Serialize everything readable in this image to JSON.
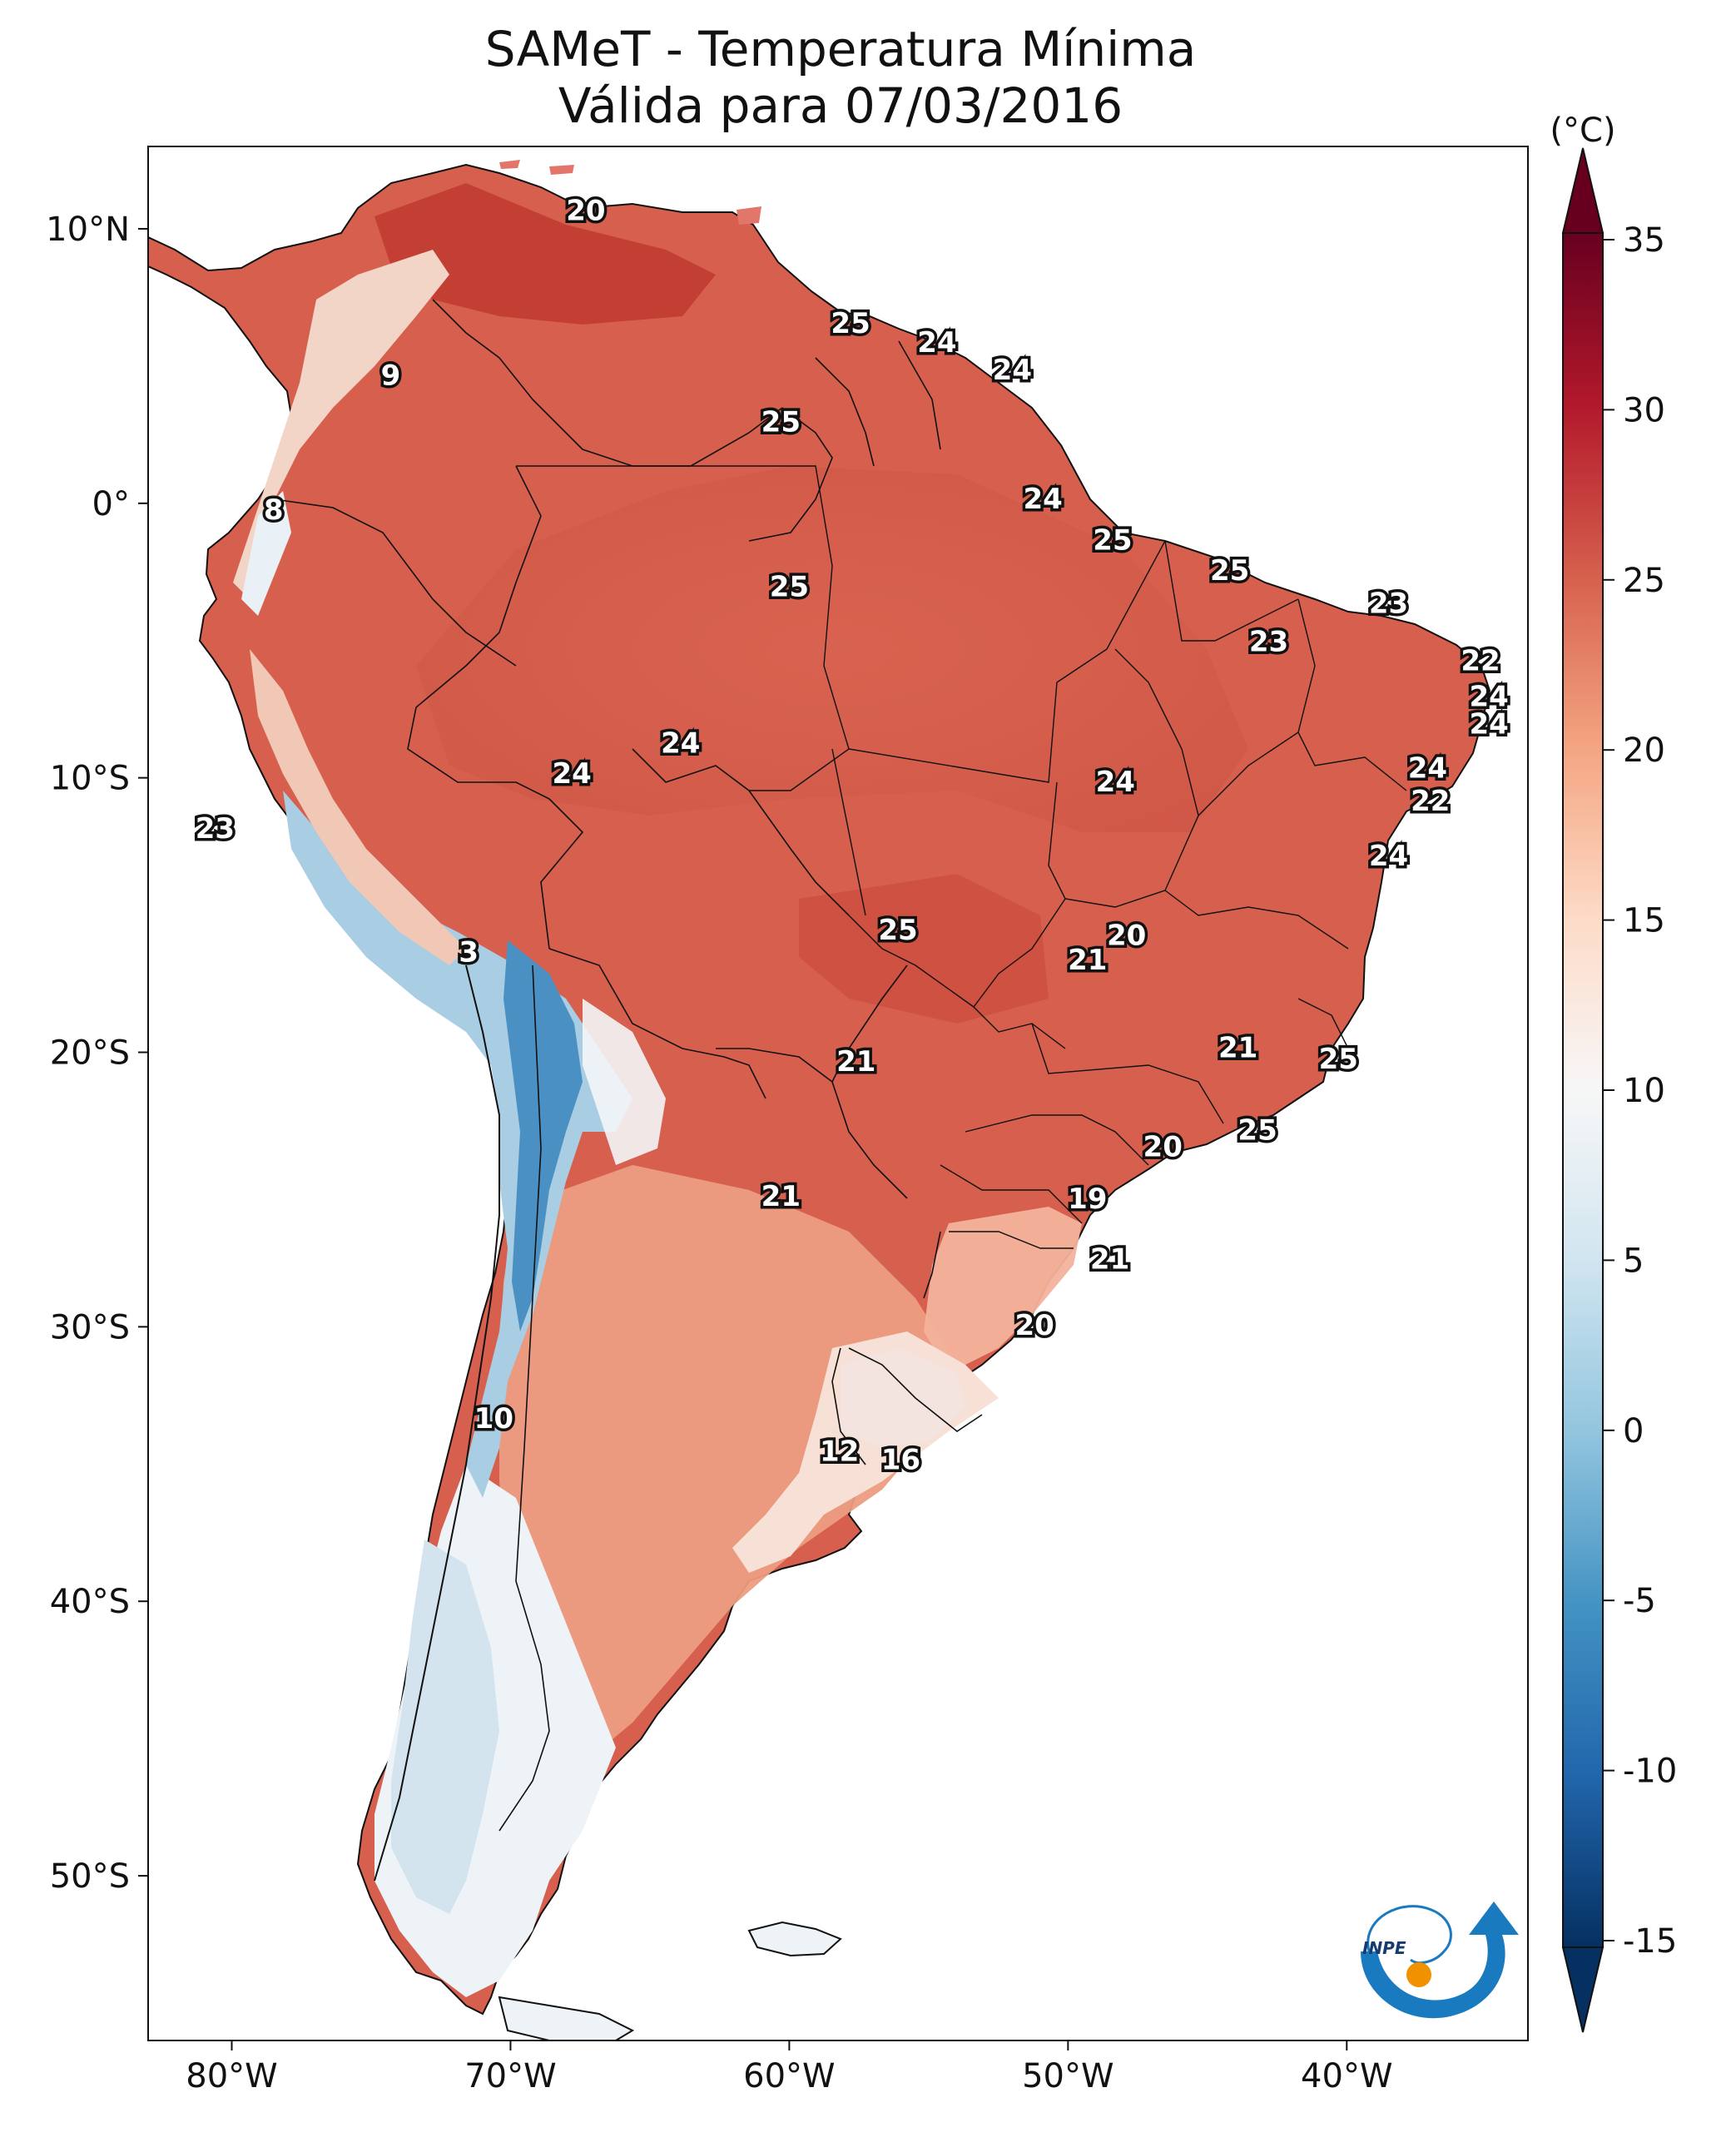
{
  "title_line1": "SAMeT - Temperatura Mínima",
  "title_line2": "Válida para 07/03/2016",
  "unit": "(°C)",
  "lon_labels": [
    {
      "text": "80°W",
      "lon": -80
    },
    {
      "text": "70°W",
      "lon": -70
    },
    {
      "text": "60°W",
      "lon": -60
    },
    {
      "text": "50°W",
      "lon": -50
    },
    {
      "text": "40°W",
      "lon": -40
    }
  ],
  "lat_labels": [
    {
      "text": "10°N",
      "lat": 10
    },
    {
      "text": "0°",
      "lat": 0
    },
    {
      "text": "10°S",
      "lat": -10
    },
    {
      "text": "20°S",
      "lat": -20
    },
    {
      "text": "30°S",
      "lat": -30
    },
    {
      "text": "40°S",
      "lat": -40
    },
    {
      "text": "50°S",
      "lat": -50
    }
  ],
  "map_extent": {
    "lon_min": -83,
    "lon_max": -33.5,
    "lat_min": -56,
    "lat_max": 13
  },
  "colorbar": {
    "min": -15,
    "max": 35,
    "ticks": [
      {
        "value": 35,
        "label": "35"
      },
      {
        "value": 30,
        "label": "30"
      },
      {
        "value": 25,
        "label": "25"
      },
      {
        "value": 20,
        "label": "20"
      },
      {
        "value": 15,
        "label": "15"
      },
      {
        "value": 10,
        "label": "10"
      },
      {
        "value": 5,
        "label": "5"
      },
      {
        "value": 0,
        "label": "0"
      },
      {
        "value": -5,
        "label": "-5"
      },
      {
        "value": -10,
        "label": "-10"
      },
      {
        "value": -15,
        "label": "-15"
      }
    ],
    "colors": [
      "#053061",
      "#2166ac",
      "#4393c3",
      "#92c5de",
      "#d1e5f0",
      "#f7f7f7",
      "#fddbc7",
      "#f4a582",
      "#d6604d",
      "#b2182b",
      "#67001f"
    ]
  },
  "station_values": [
    {
      "text": "20",
      "lon": -67.3,
      "lat": 10.6
    },
    {
      "text": "25",
      "lon": -57.8,
      "lat": 6.5
    },
    {
      "text": "24",
      "lon": -54.7,
      "lat": 5.8
    },
    {
      "text": "24",
      "lon": -52.0,
      "lat": 4.8
    },
    {
      "text": "9",
      "lon": -74.3,
      "lat": 4.6
    },
    {
      "text": "25",
      "lon": -60.3,
      "lat": 2.9
    },
    {
      "text": "8",
      "lon": -78.5,
      "lat": -0.3
    },
    {
      "text": "24",
      "lon": -50.9,
      "lat": 0.1
    },
    {
      "text": "25",
      "lon": -48.4,
      "lat": -1.4
    },
    {
      "text": "25",
      "lon": -44.2,
      "lat": -2.5
    },
    {
      "text": "25",
      "lon": -60.0,
      "lat": -3.1
    },
    {
      "text": "23",
      "lon": -38.5,
      "lat": -3.7
    },
    {
      "text": "23",
      "lon": -42.8,
      "lat": -5.1
    },
    {
      "text": "22",
      "lon": -35.2,
      "lat": -5.8
    },
    {
      "text": "24",
      "lon": -34.9,
      "lat": -7.1
    },
    {
      "text": "24",
      "lon": -34.9,
      "lat": -8.1
    },
    {
      "text": "24",
      "lon": -63.9,
      "lat": -8.8
    },
    {
      "text": "24",
      "lon": -67.8,
      "lat": -9.9
    },
    {
      "text": "24",
      "lon": -48.3,
      "lat": -10.2
    },
    {
      "text": "24",
      "lon": -37.1,
      "lat": -9.7
    },
    {
      "text": "22",
      "lon": -37.0,
      "lat": -10.9
    },
    {
      "text": "23",
      "lon": -80.6,
      "lat": -11.9
    },
    {
      "text": "24",
      "lon": -38.5,
      "lat": -12.9
    },
    {
      "text": "3",
      "lon": -71.5,
      "lat": -16.4
    },
    {
      "text": "25",
      "lon": -56.1,
      "lat": -15.6
    },
    {
      "text": "20",
      "lon": -47.9,
      "lat": -15.8
    },
    {
      "text": "21",
      "lon": -49.3,
      "lat": -16.7
    },
    {
      "text": "21",
      "lon": -43.9,
      "lat": -19.9
    },
    {
      "text": "25",
      "lon": -40.3,
      "lat": -20.3
    },
    {
      "text": "21",
      "lon": -57.6,
      "lat": -20.4
    },
    {
      "text": "25",
      "lon": -43.2,
      "lat": -22.9
    },
    {
      "text": "20",
      "lon": -46.6,
      "lat": -23.5
    },
    {
      "text": "21",
      "lon": -60.3,
      "lat": -25.3
    },
    {
      "text": "19",
      "lon": -49.3,
      "lat": -25.4
    },
    {
      "text": "21",
      "lon": -48.5,
      "lat": -27.6
    },
    {
      "text": "20",
      "lon": -51.2,
      "lat": -30.0
    },
    {
      "text": "10",
      "lon": -70.6,
      "lat": -33.4
    },
    {
      "text": "12",
      "lon": -58.2,
      "lat": -34.6
    },
    {
      "text": "16",
      "lon": -56.0,
      "lat": -34.9
    }
  ],
  "logo": {
    "name": "INPE",
    "text": "INPE"
  }
}
